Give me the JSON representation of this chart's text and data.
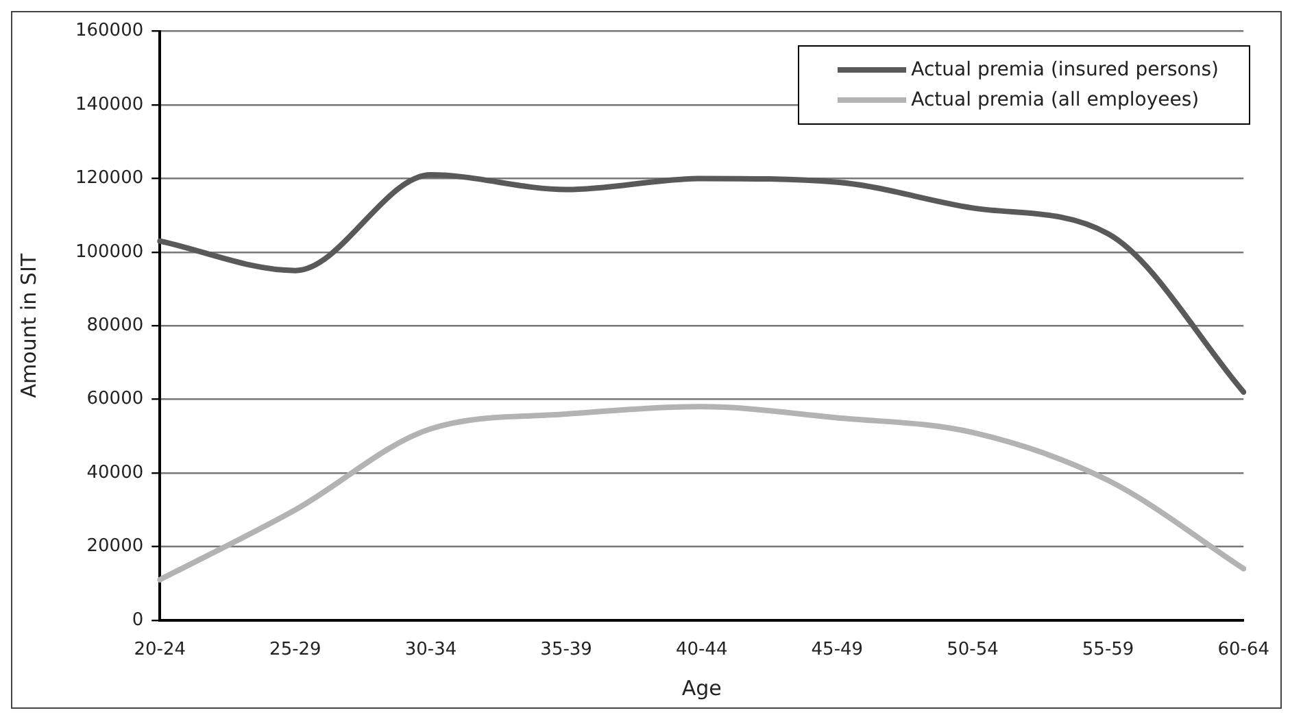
{
  "chart_data": {
    "type": "line",
    "xlabel": "Age",
    "ylabel": "Amount in SIT",
    "categories": [
      "20-24",
      "25-29",
      "30-34",
      "35-39",
      "40-44",
      "45-49",
      "50-54",
      "55-59",
      "60-64"
    ],
    "series": [
      {
        "name": "Actual premia (insured persons)",
        "color": "#595959",
        "values": [
          103000,
          95000,
          121000,
          117000,
          120000,
          119000,
          112000,
          105000,
          62000
        ]
      },
      {
        "name": "Actual premia (all employees)",
        "color": "#b3b3b3",
        "values": [
          11000,
          30000,
          52000,
          56000,
          58000,
          55000,
          51000,
          38000,
          14000
        ]
      }
    ],
    "ylim": [
      0,
      160000
    ],
    "yticks": [
      0,
      20000,
      40000,
      60000,
      80000,
      100000,
      120000,
      140000,
      160000
    ],
    "grid": "y",
    "legend": "top right",
    "marker": "none",
    "line_style": "solid"
  }
}
